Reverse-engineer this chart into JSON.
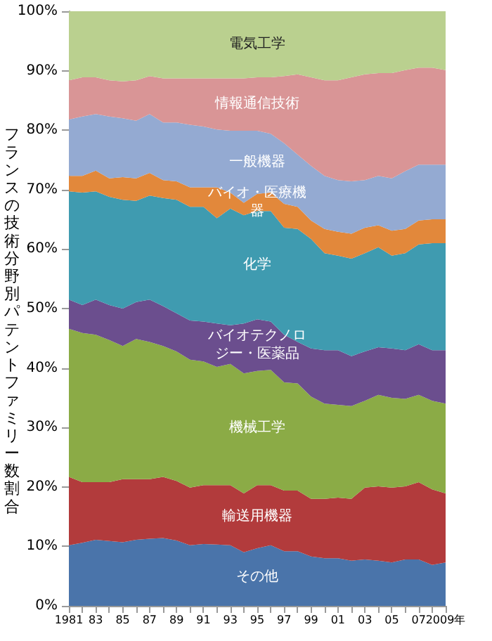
{
  "chart_data": {
    "type": "area",
    "stacked": true,
    "ylabel": "フランスの技術分野別パテントファミリー数割合",
    "categories": [
      "1981",
      null,
      "83",
      null,
      "85",
      null,
      "87",
      null,
      "89",
      null,
      "91",
      null,
      "93",
      null,
      "95",
      null,
      "97",
      null,
      "99",
      null,
      "01",
      null,
      "03",
      null,
      "05",
      null,
      "07",
      null,
      "2009年"
    ],
    "series": [
      {
        "name": "その他",
        "color": "#4a74aa",
        "values": [
          10.2,
          10.6,
          11.1,
          10.9,
          10.7,
          11.1,
          11.3,
          11.4,
          11.0,
          10.2,
          10.4,
          10.3,
          10.2,
          9.0,
          9.7,
          10.2,
          9.2,
          9.2,
          8.3,
          8.0,
          8.0,
          7.6,
          7.8,
          7.6,
          7.3,
          7.8,
          7.8,
          6.9,
          7.3
        ]
      },
      {
        "name": "輸送用機器",
        "color": "#b23b3c",
        "values": [
          11.5,
          10.2,
          9.7,
          9.9,
          10.6,
          10.2,
          10.0,
          10.3,
          10.0,
          9.7,
          9.9,
          10.0,
          10.1,
          9.9,
          10.6,
          10.1,
          10.2,
          10.2,
          9.7,
          10.0,
          10.2,
          10.4,
          12.1,
          12.5,
          12.6,
          12.3,
          13.0,
          12.7,
          11.6
        ]
      },
      {
        "name": "機械工学",
        "color": "#8bab46",
        "values": [
          24.9,
          25.1,
          24.8,
          23.9,
          22.4,
          23.6,
          23.1,
          22.0,
          21.8,
          21.5,
          20.8,
          19.9,
          20.4,
          20.2,
          19.2,
          19.4,
          18.2,
          18.0,
          17.2,
          16.0,
          15.6,
          15.6,
          14.6,
          15.4,
          15.1,
          14.7,
          14.7,
          14.9,
          15.1
        ]
      },
      {
        "name": "バイオテクノロジー・医薬品",
        "color": "#6b4e8e",
        "values": [
          4.9,
          4.7,
          5.9,
          5.9,
          6.3,
          6.2,
          7.1,
          6.7,
          6.4,
          6.6,
          6.7,
          7.3,
          6.5,
          8.4,
          8.7,
          8.1,
          8.0,
          7.0,
          8.1,
          9.0,
          9.2,
          8.4,
          8.3,
          8.0,
          8.3,
          8.2,
          8.5,
          8.5,
          9.0
        ]
      },
      {
        "name": "化学",
        "color": "#3f9bb0",
        "values": [
          18.2,
          18.9,
          18.2,
          18.2,
          18.3,
          17.0,
          17.5,
          18.2,
          19.1,
          19.1,
          19.3,
          17.7,
          19.6,
          18.2,
          18.2,
          18.6,
          18.0,
          19.0,
          18.4,
          16.3,
          15.9,
          16.4,
          16.5,
          16.8,
          15.6,
          16.3,
          16.8,
          18.0,
          18.0
        ]
      },
      {
        "name": "バイオ・医療機器",
        "color": "#e2883b",
        "values": [
          2.6,
          2.8,
          3.5,
          3.1,
          3.8,
          3.8,
          3.8,
          3.0,
          3.1,
          3.3,
          3.3,
          5.2,
          2.7,
          2.1,
          2.9,
          3.1,
          4.0,
          3.7,
          3.1,
          4.1,
          4.0,
          4.2,
          4.3,
          3.7,
          4.2,
          4.1,
          4.0,
          4.0,
          4.0
        ]
      },
      {
        "name": "一般機器",
        "color": "#94aad2",
        "values": [
          9.5,
          10.0,
          9.5,
          10.4,
          9.9,
          9.7,
          9.9,
          9.7,
          9.9,
          10.5,
          10.2,
          9.7,
          10.4,
          12.1,
          10.6,
          9.9,
          10.2,
          8.8,
          9.2,
          8.9,
          8.7,
          8.8,
          8.0,
          8.3,
          8.8,
          9.7,
          9.4,
          9.2,
          9.2
        ]
      },
      {
        "name": "情報通信技術",
        "color": "#d99596",
        "values": [
          6.6,
          6.6,
          6.2,
          6.1,
          6.2,
          6.8,
          6.4,
          7.4,
          7.4,
          7.8,
          8.1,
          8.6,
          8.8,
          8.8,
          9.0,
          9.5,
          11.3,
          13.5,
          14.9,
          16.1,
          16.8,
          17.5,
          17.8,
          17.3,
          17.7,
          17.0,
          16.3,
          16.3,
          15.9
        ]
      },
      {
        "name": "電気工学",
        "color": "#bad08f",
        "values": [
          11.6,
          11.1,
          11.1,
          11.6,
          11.8,
          11.6,
          10.9,
          11.3,
          11.3,
          11.3,
          11.3,
          11.3,
          11.3,
          11.3,
          11.1,
          11.1,
          10.9,
          10.6,
          11.1,
          11.6,
          11.6,
          11.1,
          10.6,
          10.4,
          10.4,
          9.9,
          9.5,
          9.5,
          9.9
        ]
      }
    ],
    "ylim": [
      0,
      100
    ],
    "yticks": [
      {
        "value": 0,
        "label": "0%"
      },
      {
        "value": 10,
        "label": "10%"
      },
      {
        "value": 20,
        "label": "20%"
      },
      {
        "value": 30,
        "label": "30%"
      },
      {
        "value": 40,
        "label": "40%"
      },
      {
        "value": 50,
        "label": "50%"
      },
      {
        "value": 60,
        "label": "60%"
      },
      {
        "value": 70,
        "label": "70%"
      },
      {
        "value": 80,
        "label": "80%"
      },
      {
        "value": 90,
        "label": "90%"
      },
      {
        "value": 100,
        "label": "100%"
      }
    ],
    "grid": false,
    "legend": false
  }
}
